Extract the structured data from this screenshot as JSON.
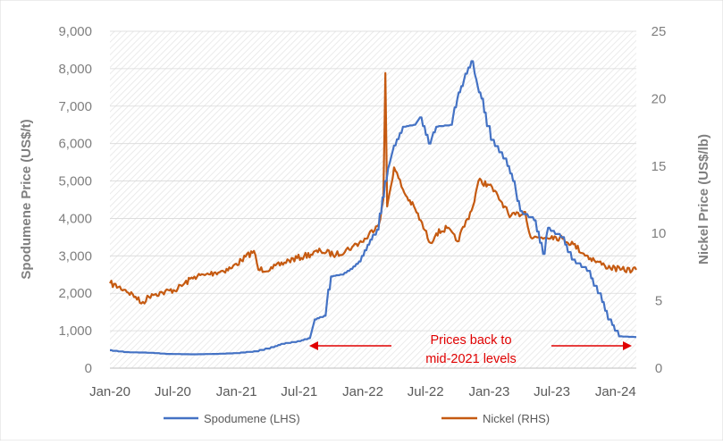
{
  "chart_data": {
    "type": "line",
    "title": "",
    "ylabel": "Spodumene Price (US$/t)",
    "y2label": "Nickel Price (US$/lb)",
    "ylim": [
      0,
      9000
    ],
    "y2lim": [
      0,
      25
    ],
    "y_ticks": [
      "0",
      "1,000",
      "2,000",
      "3,000",
      "4,000",
      "5,000",
      "6,000",
      "7,000",
      "8,000",
      "9,000"
    ],
    "y2_ticks": [
      "0",
      "5",
      "10",
      "15",
      "20",
      "25"
    ],
    "x_ticks": [
      "Jan-20",
      "Jul-20",
      "Jan-21",
      "Jul-21",
      "Jan-22",
      "Jul-22",
      "Jan-23",
      "Jul-23",
      "Jan-24"
    ],
    "grid": "hatched background",
    "legend_position": "bottom",
    "colors": {
      "spodumene": "#4472C4",
      "nickel": "#C55A11",
      "annotation": "#E00000"
    },
    "annotation": {
      "line1": "Prices back to",
      "line2": "mid-2021 levels"
    },
    "series": [
      {
        "name": "Spodumene (LHS)",
        "axis": "left",
        "points": [
          [
            "2020-01-01",
            480
          ],
          [
            "2020-02-15",
            430
          ],
          [
            "2020-05-01",
            410
          ],
          [
            "2020-06-15",
            380
          ],
          [
            "2020-09-01",
            370
          ],
          [
            "2020-11-01",
            380
          ],
          [
            "2021-01-01",
            400
          ],
          [
            "2021-03-01",
            450
          ],
          [
            "2021-04-15",
            560
          ],
          [
            "2021-05-15",
            650
          ],
          [
            "2021-07-01",
            720
          ],
          [
            "2021-08-01",
            800
          ],
          [
            "2021-08-15",
            1300
          ],
          [
            "2021-09-15",
            1400
          ],
          [
            "2021-10-01",
            2450
          ],
          [
            "2021-11-01",
            2500
          ],
          [
            "2021-12-01",
            2650
          ],
          [
            "2021-12-25",
            2850
          ],
          [
            "2022-01-15",
            3300
          ],
          [
            "2022-02-15",
            3700
          ],
          [
            "2022-03-10",
            5000
          ],
          [
            "2022-03-20",
            5500
          ],
          [
            "2022-04-01",
            5950
          ],
          [
            "2022-05-01",
            6450
          ],
          [
            "2022-06-01",
            6500
          ],
          [
            "2022-06-15",
            6700
          ],
          [
            "2022-07-15",
            6000
          ],
          [
            "2022-08-01",
            6450
          ],
          [
            "2022-09-15",
            6500
          ],
          [
            "2022-10-01",
            7200
          ],
          [
            "2022-10-20",
            7700
          ],
          [
            "2022-11-15",
            8200
          ],
          [
            "2022-11-25",
            7700
          ],
          [
            "2022-12-10",
            7200
          ],
          [
            "2023-01-10",
            6100
          ],
          [
            "2023-02-15",
            5600
          ],
          [
            "2023-03-15",
            5000
          ],
          [
            "2023-04-01",
            4200
          ],
          [
            "2023-05-15",
            3950
          ],
          [
            "2023-06-10",
            3050
          ],
          [
            "2023-06-20",
            3750
          ],
          [
            "2023-08-01",
            3500
          ],
          [
            "2023-09-01",
            2900
          ],
          [
            "2023-10-15",
            2600
          ],
          [
            "2023-11-15",
            2000
          ],
          [
            "2023-12-15",
            1300
          ],
          [
            "2024-01-15",
            850
          ],
          [
            "2024-03-01",
            830
          ]
        ]
      },
      {
        "name": "Nickel (RHS)",
        "axis": "right",
        "points": [
          [
            "2020-01-01",
            6.3
          ],
          [
            "2020-02-15",
            5.8
          ],
          [
            "2020-03-15",
            5.3
          ],
          [
            "2020-04-01",
            4.8
          ],
          [
            "2020-05-01",
            5.5
          ],
          [
            "2020-06-01",
            5.6
          ],
          [
            "2020-07-15",
            5.9
          ],
          [
            "2020-09-01",
            6.8
          ],
          [
            "2020-10-01",
            6.9
          ],
          [
            "2020-11-01",
            7.1
          ],
          [
            "2020-12-15",
            7.4
          ],
          [
            "2021-01-15",
            8.0
          ],
          [
            "2021-02-20",
            8.7
          ],
          [
            "2021-03-05",
            7.3
          ],
          [
            "2021-04-15",
            7.4
          ],
          [
            "2021-06-01",
            8.0
          ],
          [
            "2021-07-15",
            8.3
          ],
          [
            "2021-09-01",
            8.7
          ],
          [
            "2021-10-15",
            8.4
          ],
          [
            "2021-12-01",
            9.0
          ],
          [
            "2022-01-10",
            9.6
          ],
          [
            "2022-02-20",
            11.0
          ],
          [
            "2022-03-01",
            12.5
          ],
          [
            "2022-03-07",
            21.9
          ],
          [
            "2022-03-12",
            12.0
          ],
          [
            "2022-04-01",
            14.9
          ],
          [
            "2022-05-01",
            13.0
          ],
          [
            "2022-06-01",
            11.8
          ],
          [
            "2022-07-15",
            9.3
          ],
          [
            "2022-08-01",
            10.0
          ],
          [
            "2022-09-01",
            10.4
          ],
          [
            "2022-10-01",
            9.4
          ],
          [
            "2022-11-15",
            12.0
          ],
          [
            "2022-12-01",
            13.9
          ],
          [
            "2023-01-01",
            13.6
          ],
          [
            "2023-02-15",
            12.0
          ],
          [
            "2023-03-01",
            11.2
          ],
          [
            "2023-04-15",
            11.6
          ],
          [
            "2023-05-01",
            9.7
          ],
          [
            "2023-06-01",
            9.7
          ],
          [
            "2023-07-01",
            9.8
          ],
          [
            "2023-08-01",
            9.6
          ],
          [
            "2023-09-01",
            9.2
          ],
          [
            "2023-10-01",
            8.5
          ],
          [
            "2023-11-01",
            8.0
          ],
          [
            "2023-12-01",
            7.6
          ],
          [
            "2024-01-15",
            7.3
          ],
          [
            "2024-03-01",
            7.3
          ]
        ]
      }
    ]
  }
}
